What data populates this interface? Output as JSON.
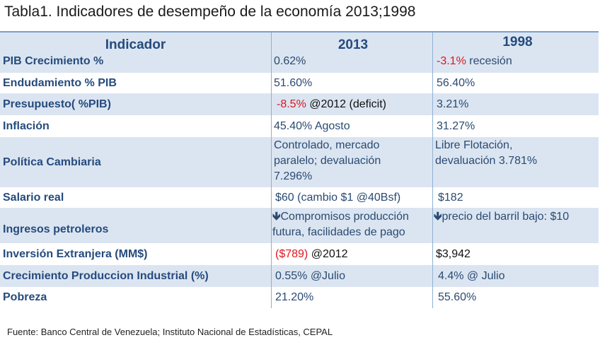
{
  "title": "Tabla1. Indicadores de desempeño de la  economía 2013;1998",
  "header": {
    "indicator": "Indicador",
    "col2013": "2013",
    "col1998": "1998"
  },
  "rows": [
    {
      "label": "PIB Crecimiento %",
      "v2013": "0.62%",
      "v1998_red": "-3.1%",
      "v1998": " recesión"
    },
    {
      "label": "Endudamiento % PIB",
      "v2013": "51.60%",
      "v1998": "56.40%"
    },
    {
      "label": "Presupuesto( %PIB)",
      "v2013_red": "-8.5%",
      "v2013": " @2012 (deficit)",
      "v1998": "3.21%"
    },
    {
      "label": "Inflación",
      "v2013": "45.40% Agosto",
      "v1998": "31.27%"
    },
    {
      "label": "Política Cambiaria",
      "v2013_l1": "Controlado, mercado",
      "v2013_l2": "paralelo; devaluación",
      "v2013_l3": "7.296%",
      "v1998_l1": "Libre Flotación,",
      "v1998_l2": "devaluación 3.781%"
    },
    {
      "label": "Salario real",
      "v2013": "$60 (cambio $1 @40Bsf)",
      "v1998": "$182"
    },
    {
      "label": "Ingresos petroleros",
      "arrow": "🡻",
      "v2013_l1": "Compromisos producción",
      "v2013_l2": "futura, facilidades de pago",
      "v1998": "precio del barril bajo: $10"
    },
    {
      "label": "Inversión Extranjera (MM$)",
      "v2013_red": "($789)",
      "v2013": " @2012",
      "v1998": "$3,942"
    },
    {
      "label": "Crecimiento Produccion Industrial (%)",
      "v2013": "0.55% @Julio",
      "v1998": "4.4% @ Julio"
    },
    {
      "label": "Pobreza",
      "v2013": "21.20%",
      "v1998": "55.60%"
    }
  ],
  "source": "Fuente: Banco Central de Venezuela; Instituto Nacional de Estadísticas, CEPAL"
}
